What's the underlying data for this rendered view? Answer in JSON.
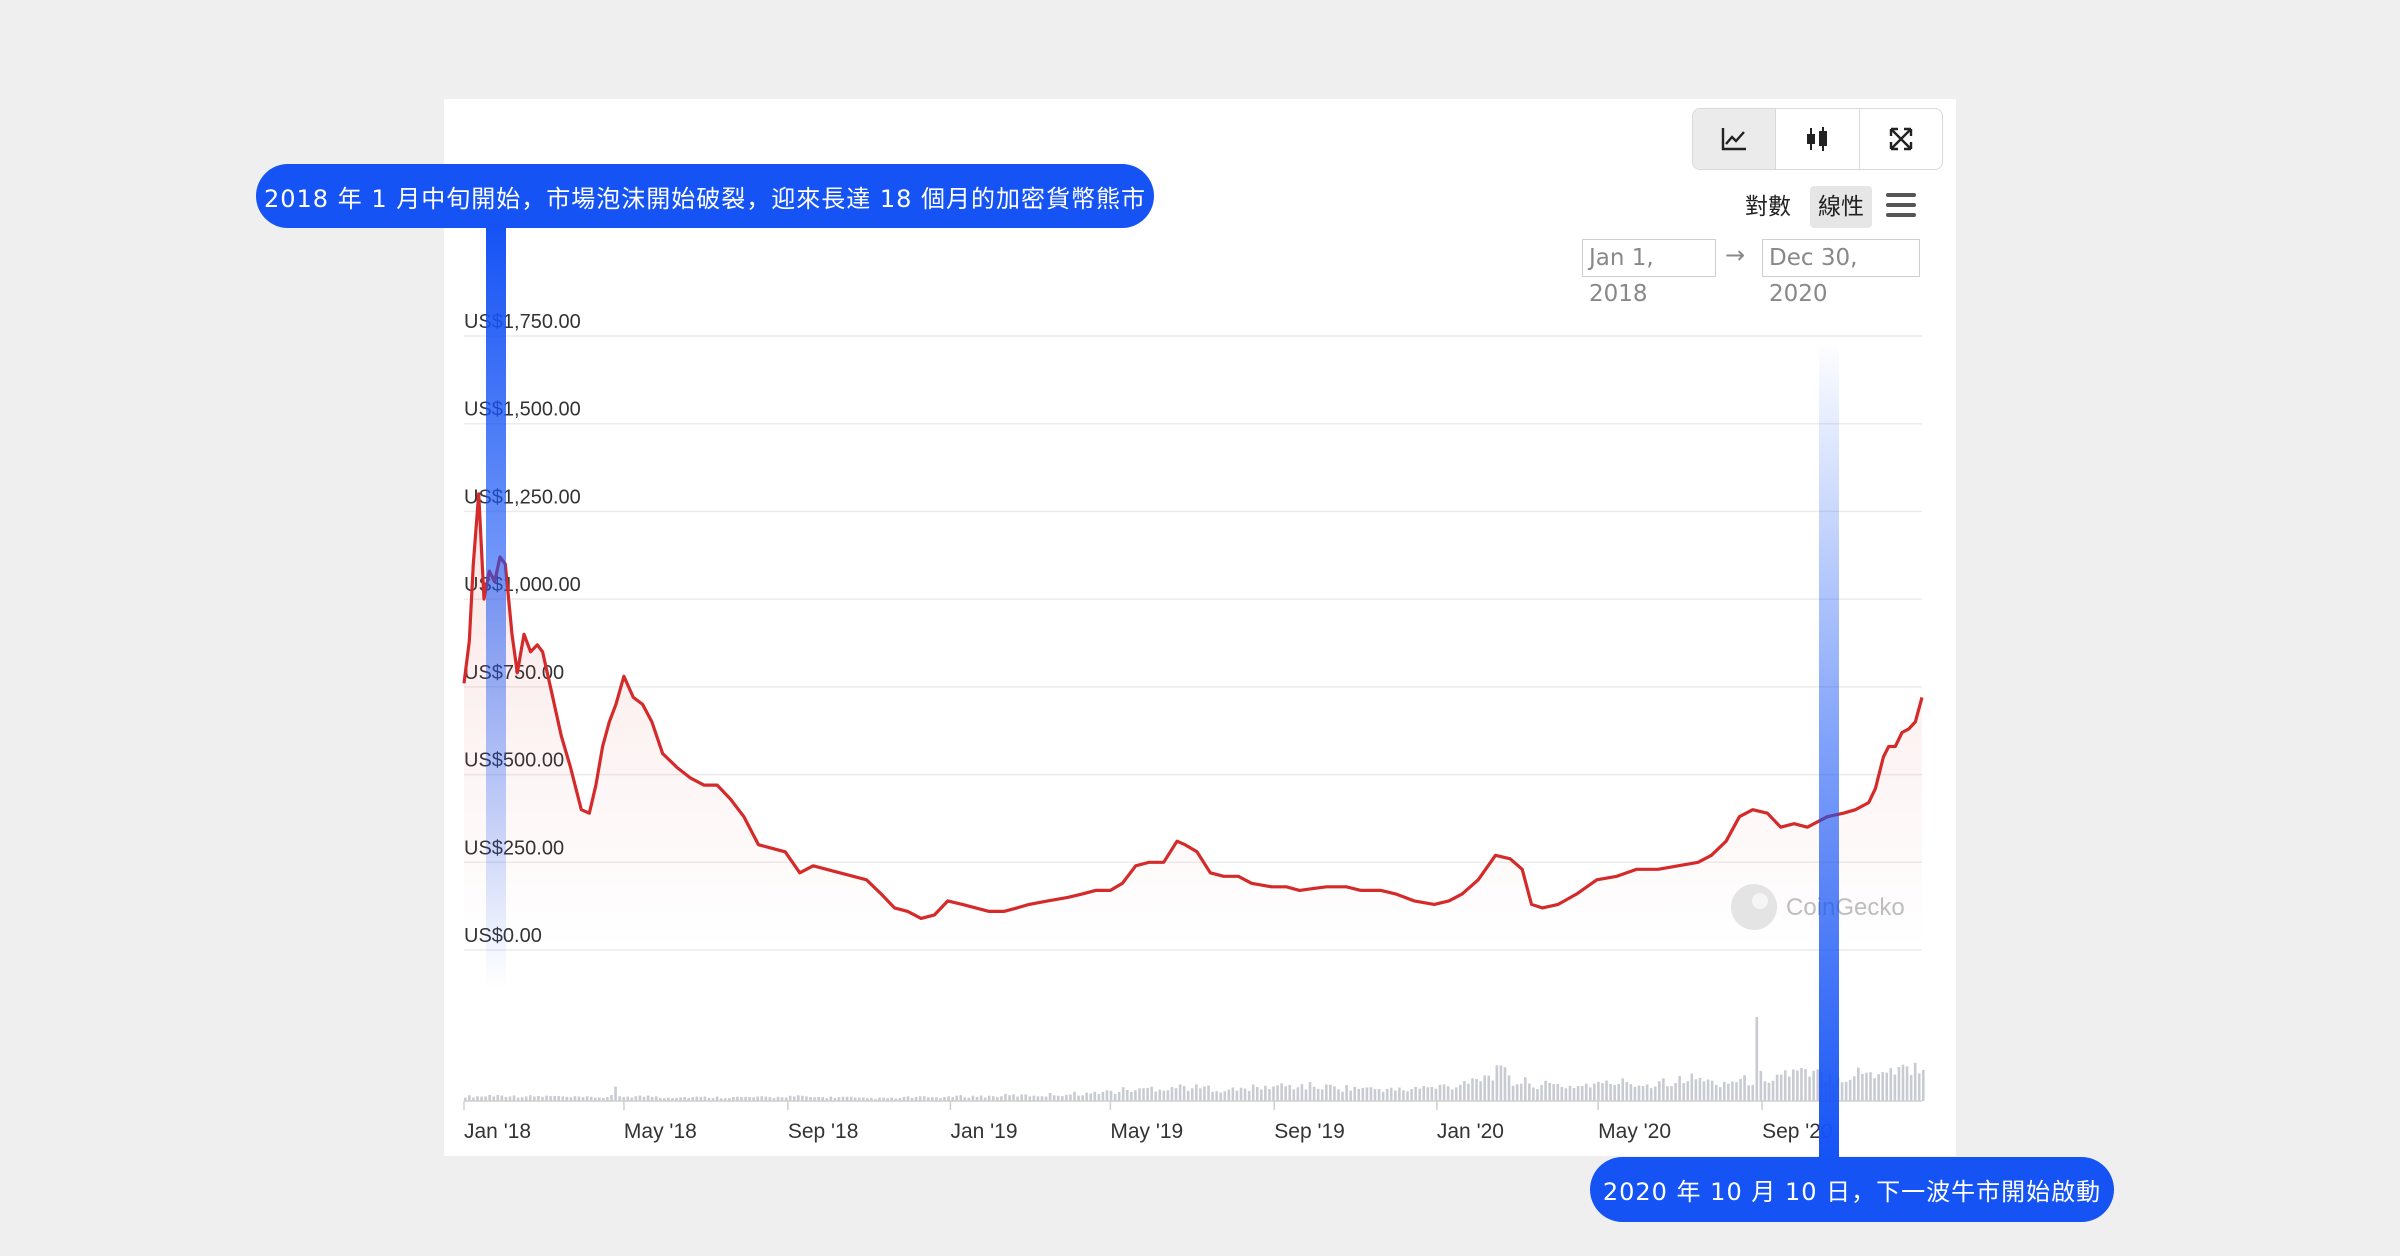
{
  "toolbar": {
    "buttons": [
      {
        "icon": "line-chart-icon",
        "active": true
      },
      {
        "icon": "candlestick-icon",
        "active": false
      },
      {
        "icon": "fullscreen-icon",
        "active": false
      }
    ]
  },
  "scale": {
    "log_label": "對數",
    "linear_label": "線性",
    "selected": "線性"
  },
  "menu_icon": "hamburger-menu-icon",
  "date_range": {
    "from": "Jan 1, 2018",
    "arrow": "→",
    "to": "Dec 30, 2020"
  },
  "watermark": "CoinGecko",
  "annotations": {
    "top": "2018 年 1 月中旬開始，市場泡沫開始破裂，迎來長達 18 個月的加密貨幣熊市",
    "bottom": "2020 年 10 月 10 日，下一波牛市開始啟動"
  },
  "colors": {
    "line": "#d42a2a",
    "callout": "#1553f5",
    "volume": "#c8cbd2"
  },
  "chart_data": {
    "type": "line",
    "title": "",
    "xlabel": "",
    "ylabel": "",
    "ylim": [
      0,
      1750
    ],
    "grid": true,
    "y_ticks": [
      "US$0.00",
      "US$250.00",
      "US$500.00",
      "US$750.00",
      "US$1,000.00",
      "US$1,250.00",
      "US$1,500.00",
      "US$1,750.00"
    ],
    "x_ticks": [
      "Jan '18",
      "May '18",
      "Sep '18",
      "Jan '19",
      "May '19",
      "Sep '19",
      "Jan '20",
      "May '20",
      "Sep '20"
    ],
    "series": [
      {
        "values_description_free": true,
        "x": [
          "2018-01-01",
          "2018-01-05",
          "2018-01-08",
          "2018-01-12",
          "2018-01-16",
          "2018-01-20",
          "2018-01-24",
          "2018-01-28",
          "2018-02-01",
          "2018-02-06",
          "2018-02-10",
          "2018-02-15",
          "2018-02-20",
          "2018-02-25",
          "2018-03-01",
          "2018-03-08",
          "2018-03-15",
          "2018-03-22",
          "2018-03-30",
          "2018-04-05",
          "2018-04-10",
          "2018-04-15",
          "2018-04-20",
          "2018-04-25",
          "2018-05-01",
          "2018-05-08",
          "2018-05-15",
          "2018-05-22",
          "2018-05-30",
          "2018-06-10",
          "2018-06-20",
          "2018-06-30",
          "2018-07-10",
          "2018-07-20",
          "2018-07-30",
          "2018-08-10",
          "2018-08-20",
          "2018-08-30",
          "2018-09-10",
          "2018-09-20",
          "2018-09-30",
          "2018-10-10",
          "2018-10-20",
          "2018-10-30",
          "2018-11-10",
          "2018-11-20",
          "2018-11-30",
          "2018-12-10",
          "2018-12-20",
          "2018-12-30",
          "2019-01-10",
          "2019-01-20",
          "2019-01-30",
          "2019-02-10",
          "2019-02-20",
          "2019-03-01",
          "2019-03-15",
          "2019-03-30",
          "2019-04-10",
          "2019-04-20",
          "2019-05-01",
          "2019-05-10",
          "2019-05-20",
          "2019-05-30",
          "2019-06-10",
          "2019-06-20",
          "2019-06-26",
          "2019-07-05",
          "2019-07-15",
          "2019-07-25",
          "2019-08-05",
          "2019-08-15",
          "2019-08-30",
          "2019-09-10",
          "2019-09-20",
          "2019-09-30",
          "2019-10-10",
          "2019-10-25",
          "2019-11-05",
          "2019-11-20",
          "2019-12-01",
          "2019-12-15",
          "2019-12-30",
          "2020-01-10",
          "2020-01-20",
          "2020-02-01",
          "2020-02-14",
          "2020-02-25",
          "2020-03-05",
          "2020-03-12",
          "2020-03-20",
          "2020-04-01",
          "2020-04-15",
          "2020-04-30",
          "2020-05-15",
          "2020-05-30",
          "2020-06-15",
          "2020-06-30",
          "2020-07-15",
          "2020-07-25",
          "2020-08-05",
          "2020-08-15",
          "2020-08-25",
          "2020-09-05",
          "2020-09-15",
          "2020-09-25",
          "2020-10-05",
          "2020-10-10",
          "2020-10-20",
          "2020-11-01",
          "2020-11-10",
          "2020-11-20",
          "2020-11-25",
          "2020-12-01",
          "2020-12-05",
          "2020-12-10",
          "2020-12-15",
          "2020-12-20",
          "2020-12-25",
          "2020-12-30"
        ],
        "values": [
          760,
          880,
          1100,
          1300,
          1000,
          1080,
          1050,
          1120,
          1100,
          900,
          790,
          900,
          850,
          870,
          850,
          730,
          610,
          520,
          400,
          390,
          470,
          580,
          650,
          700,
          780,
          720,
          700,
          650,
          560,
          520,
          490,
          470,
          470,
          430,
          380,
          300,
          290,
          280,
          220,
          240,
          230,
          220,
          210,
          200,
          160,
          120,
          110,
          90,
          100,
          140,
          130,
          120,
          110,
          110,
          120,
          130,
          140,
          150,
          160,
          170,
          170,
          190,
          240,
          250,
          250,
          310,
          300,
          280,
          220,
          210,
          210,
          190,
          180,
          180,
          170,
          175,
          180,
          180,
          170,
          170,
          160,
          140,
          130,
          140,
          160,
          200,
          270,
          260,
          230,
          130,
          120,
          130,
          160,
          200,
          210,
          230,
          230,
          240,
          250,
          270,
          310,
          380,
          400,
          390,
          350,
          360,
          350,
          360,
          380,
          390,
          400,
          420,
          460,
          550,
          580,
          580,
          620,
          630,
          650,
          720
        ]
      }
    ],
    "volume": {
      "x_range": [
        "2018-01-01",
        "2020-12-30"
      ],
      "relative_levels": [
        0.05,
        0.06,
        0.05,
        0.05,
        0.04,
        0.04,
        0.05,
        0.05,
        0.04,
        0.04,
        0.04,
        0.04,
        0.04,
        0.05,
        0.04,
        0.04,
        0.03,
        0.03,
        0.04,
        0.04,
        0.05,
        0.05,
        0.06,
        0.06,
        0.07,
        0.08,
        0.1,
        0.12,
        0.14,
        0.15,
        0.14,
        0.12,
        0.14,
        0.16,
        0.16,
        0.15,
        0.14,
        0.13,
        0.12,
        0.14,
        0.16,
        0.25,
        0.3,
        0.2,
        0.17,
        0.16,
        0.18,
        0.2,
        0.18,
        0.22,
        0.24,
        0.2,
        0.22,
        0.26,
        0.3,
        0.28,
        0.26,
        0.3,
        0.34,
        0.36
      ]
    }
  }
}
